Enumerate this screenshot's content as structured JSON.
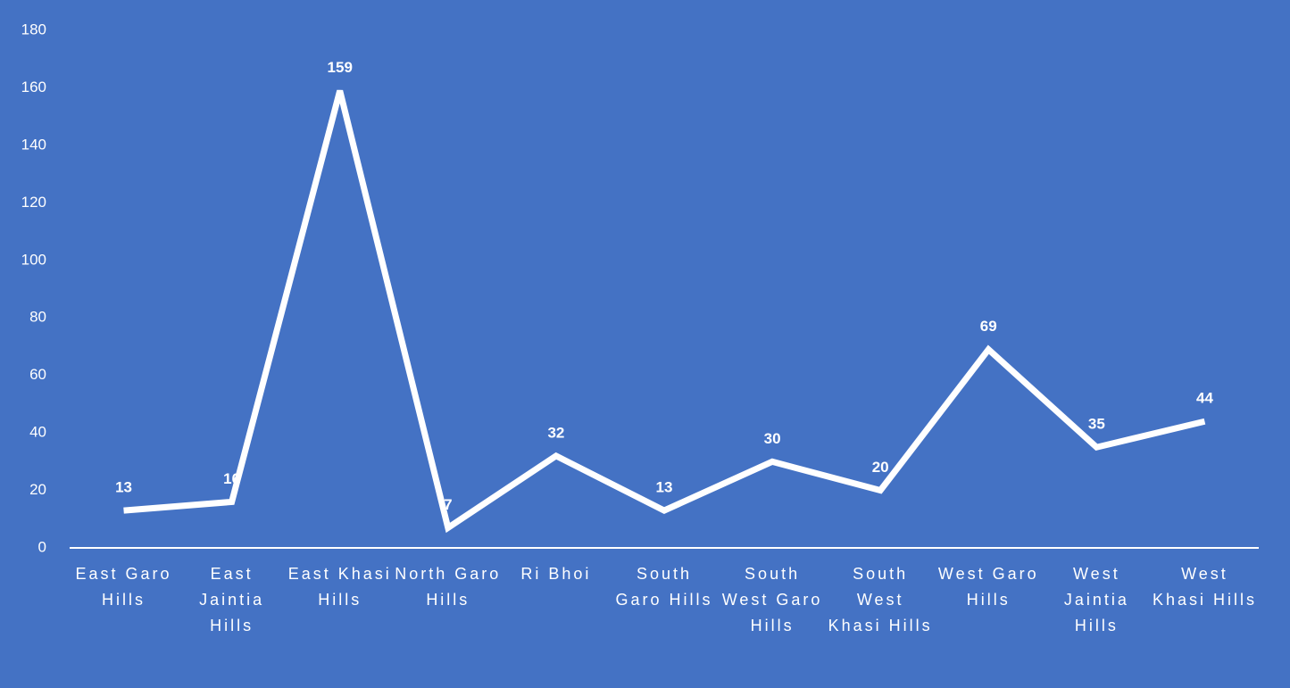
{
  "chart_data": {
    "type": "line",
    "categories": [
      "East Garo Hills",
      "East Jaintia Hills",
      "East Khasi Hills",
      "North Garo Hills",
      "Ri Bhoi",
      "South Garo Hills",
      "South West Garo Hills",
      "South West Khasi Hills",
      "West Garo Hills",
      "West Jaintia Hills",
      "West Khasi Hills"
    ],
    "values": [
      13,
      16,
      159,
      7,
      32,
      13,
      30,
      20,
      69,
      35,
      44
    ],
    "color": "#ffffff",
    "background": "#4472c4",
    "ylim": [
      0,
      180
    ],
    "yticks": [
      0,
      20,
      40,
      60,
      80,
      100,
      120,
      140,
      160,
      180
    ],
    "grid": false,
    "drop_lines": true,
    "data_labels": true
  }
}
